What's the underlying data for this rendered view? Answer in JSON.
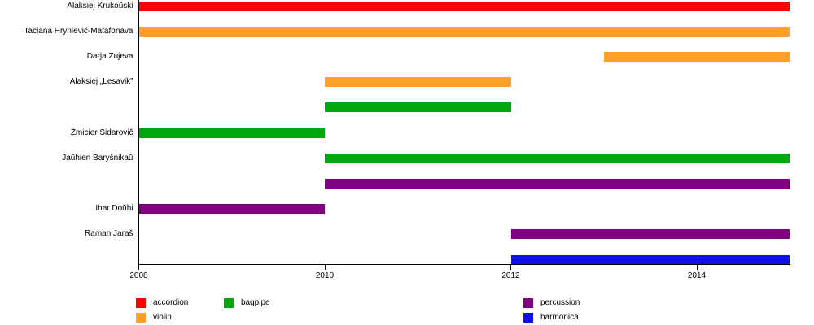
{
  "chart_data": {
    "type": "bar",
    "subtype": "gantt-timeline",
    "title": "",
    "xlabel": "",
    "ylabel": "",
    "x_axis": {
      "min": 2008,
      "max": 2015,
      "ticks": [
        2008,
        2010,
        2012,
        2014
      ],
      "tick_labels": [
        "2008",
        "2010",
        "2012",
        "2014"
      ],
      "grid": false
    },
    "rows": [
      {
        "label": "Alaksiej Krukoŭski",
        "instrument": "accordion",
        "start": 2008,
        "end": 2015
      },
      {
        "label": "Taciana Hrynievič-Matafonava",
        "instrument": "violin",
        "start": 2008,
        "end": 2015
      },
      {
        "label": "Darja Zujeva",
        "instrument": "violin",
        "start": 2013,
        "end": 2015
      },
      {
        "label": "Alaksiej „Lesavik”",
        "instrument": "violin",
        "start": 2010,
        "end": 2012
      },
      {
        "label": "",
        "instrument": "bagpipe",
        "start": 2010,
        "end": 2012
      },
      {
        "label": "Žmicier Sidarovič",
        "instrument": "bagpipe",
        "start": 2008,
        "end": 2010
      },
      {
        "label": "Jaŭhien Baryšnikaŭ",
        "instrument": "bagpipe",
        "start": 2010,
        "end": 2015
      },
      {
        "label": "",
        "instrument": "percussion",
        "start": 2010,
        "end": 2015
      },
      {
        "label": "Ihar Doŭhi",
        "instrument": "percussion",
        "start": 2008,
        "end": 2010
      },
      {
        "label": "Raman Jaraš",
        "instrument": "percussion",
        "start": 2012,
        "end": 2015
      },
      {
        "label": "",
        "instrument": "harmonica",
        "start": 2012,
        "end": 2015
      }
    ],
    "colors": {
      "accordion": "#ff0000",
      "violin": "#ffa128",
      "bagpipe": "#00a80e",
      "percussion": "#800080",
      "harmonica": "#0f0fe8"
    },
    "legend": {
      "position": "bottom",
      "items": [
        {
          "label": "accordion",
          "instrument": "accordion",
          "col": 0,
          "row": 0
        },
        {
          "label": "violin",
          "instrument": "violin",
          "col": 0,
          "row": 1
        },
        {
          "label": "bagpipe",
          "instrument": "bagpipe",
          "col": 1,
          "row": 0
        },
        {
          "label": "percussion",
          "instrument": "percussion",
          "col": 2,
          "row": 0
        },
        {
          "label": "harmonica",
          "instrument": "harmonica",
          "col": 2,
          "row": 1
        }
      ]
    }
  }
}
